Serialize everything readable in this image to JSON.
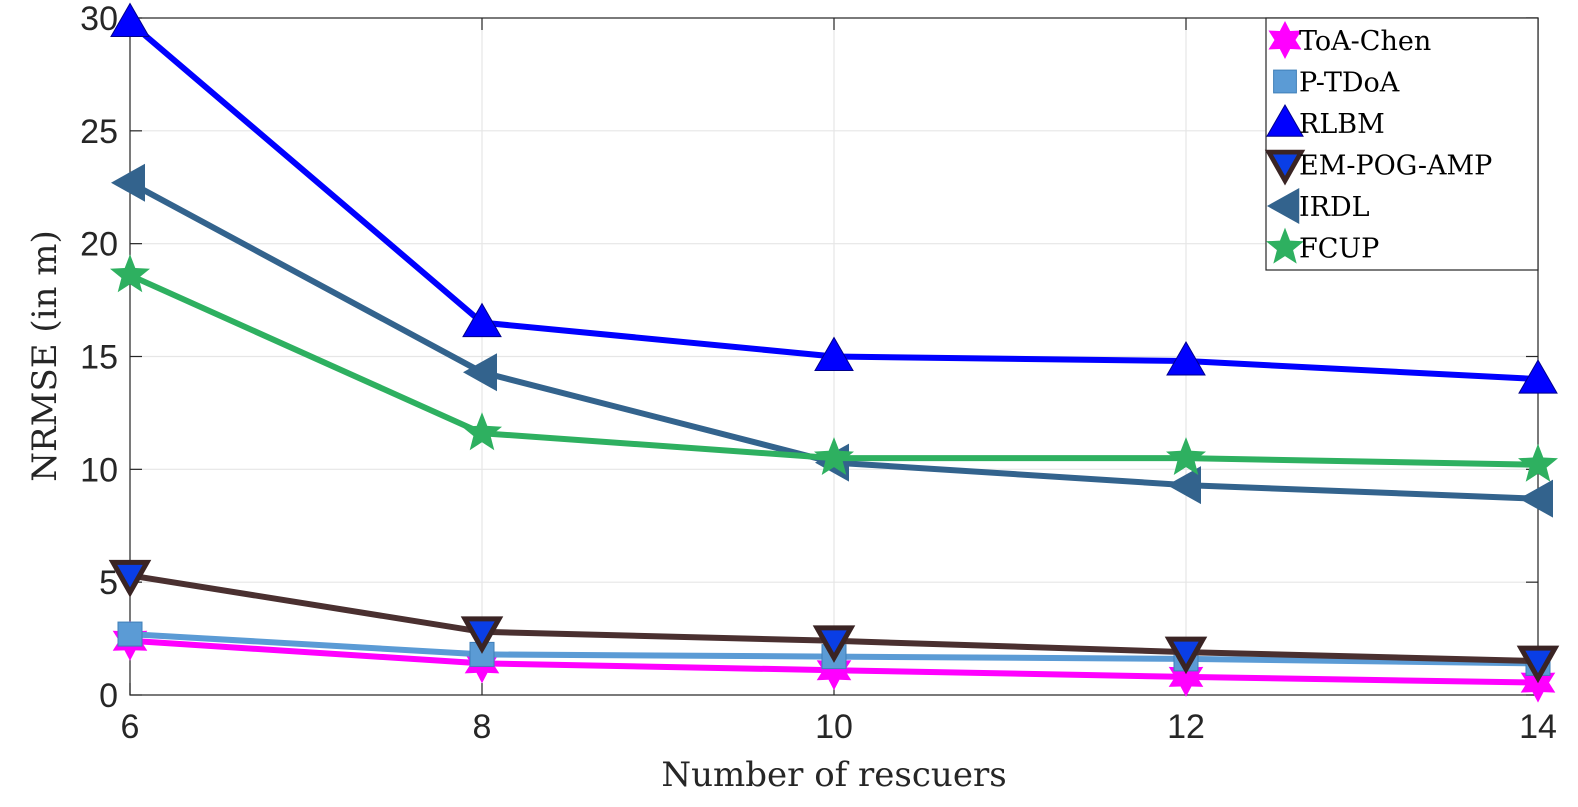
{
  "chart_data": {
    "type": "line",
    "title": "",
    "xlabel": "Number of rescuers",
    "ylabel": "NRMSE (in m)",
    "x": [
      6,
      8,
      10,
      12,
      14
    ],
    "xticks": [
      "6",
      "8",
      "10",
      "12",
      "14"
    ],
    "yticks": [
      "0",
      "5",
      "10",
      "15",
      "20",
      "25",
      "30"
    ],
    "xlim": [
      6,
      14
    ],
    "ylim": [
      0,
      30
    ],
    "grid": true,
    "legend_position": "top-right",
    "series": [
      {
        "name": "ToA-Chen",
        "values": [
          2.4,
          1.4,
          1.1,
          0.8,
          0.55
        ],
        "color": "#ff00ff",
        "marker": "star6"
      },
      {
        "name": "P-TDoA",
        "values": [
          2.7,
          1.8,
          1.7,
          1.6,
          1.4
        ],
        "color": "#5b9bd5",
        "marker": "square"
      },
      {
        "name": "RLBM",
        "values": [
          29.8,
          16.5,
          15.0,
          14.8,
          14.0
        ],
        "color": "#0000ff",
        "marker": "triangle-up"
      },
      {
        "name": "EM-POG-AMP",
        "values": [
          5.3,
          2.8,
          2.4,
          1.9,
          1.5
        ],
        "color": "#4a3030",
        "marker": "triangle-down"
      },
      {
        "name": "IRDL",
        "values": [
          22.7,
          14.3,
          10.3,
          9.3,
          8.7
        ],
        "color": "#33638d",
        "marker": "triangle-left"
      },
      {
        "name": "FCUP",
        "values": [
          18.6,
          11.6,
          10.5,
          10.5,
          10.2
        ],
        "color": "#2eb060",
        "marker": "star5"
      }
    ]
  }
}
